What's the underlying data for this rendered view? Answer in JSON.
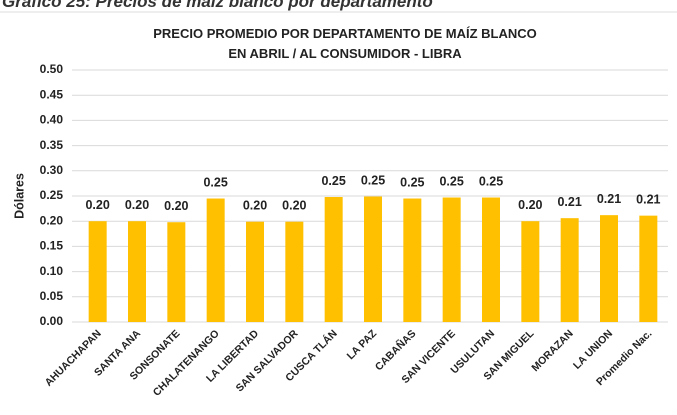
{
  "caption": "Gráfico 25: Precios de maíz blanco por departamento",
  "chart_data": {
    "type": "bar",
    "title_lines": [
      "PRECIO PROMEDIO POR DEPARTAMENTO DE MAÍZ BLANCO",
      "EN ABRIL / AL CONSUMIDOR - LIBRA"
    ],
    "y_label": "Dólares",
    "categories": [
      "AHUACHAPAN",
      "SANTA ANA",
      "SONSONATE",
      "CHALATENANGO",
      "LA LIBERTAD",
      "SAN SALVADOR",
      "CUSCA TLÁN",
      "LA PAZ",
      "CABAÑAS",
      "SAN VICENTE",
      "USULUTAN",
      "SAN MIGUEL",
      "MORAZAN",
      "LA UNION",
      "Promedio Nac."
    ],
    "values": [
      0.2,
      0.2,
      0.198,
      0.245,
      0.199,
      0.199,
      0.248,
      0.249,
      0.245,
      0.247,
      0.247,
      0.2,
      0.206,
      0.212,
      0.211
    ],
    "value_labels": [
      "0.20",
      "0.20",
      "0.20",
      "0.25",
      "0.20",
      "0.20",
      "0.25",
      "0.25",
      "0.25",
      "0.25",
      "0.25",
      "0.20",
      "0.21",
      "0.21",
      "0.21"
    ],
    "color": "#FFC000",
    "ylim": [
      0,
      0.5
    ],
    "yticks": [
      {
        "value": 0,
        "label": "0.00"
      },
      {
        "value": 0.05,
        "label": "0.05"
      },
      {
        "value": 0.1,
        "label": "0.10"
      },
      {
        "value": 0.15,
        "label": "0.15"
      },
      {
        "value": 0.2,
        "label": "0.20"
      },
      {
        "value": 0.25,
        "label": "0.25"
      },
      {
        "value": 0.3,
        "label": "0.30"
      },
      {
        "value": 0.35,
        "label": "0.35"
      },
      {
        "value": 0.4,
        "label": "0.40"
      },
      {
        "value": 0.45,
        "label": "0.45"
      },
      {
        "value": 0.5,
        "label": "0.50"
      }
    ],
    "grid": true
  }
}
